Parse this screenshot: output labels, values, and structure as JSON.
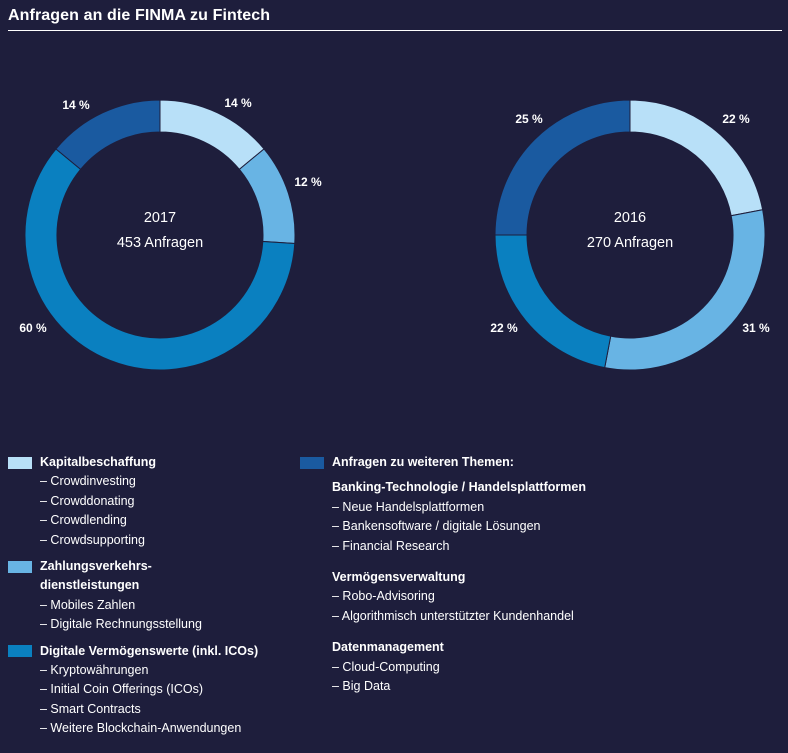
{
  "header": {
    "title": "Anfragen an die FINMA zu Fintech"
  },
  "colors": {
    "background": "#1e1e3c",
    "kapital": "#b8e0f8",
    "zahlung": "#68b4e4",
    "digital": "#0a80c0",
    "weitere": "#1a5aa0"
  },
  "chart_data": [
    {
      "type": "pie",
      "title": "",
      "center": {
        "year": "2017",
        "count": "453 Anfragen"
      },
      "slices": [
        {
          "category": "Kapitalbeschaffung",
          "value": 14,
          "label": "14 %"
        },
        {
          "category": "Zahlungsverkehrsdienstleistungen",
          "value": 12,
          "label": "12 %"
        },
        {
          "category": "Digitale Vermögenswerte (inkl. ICOs)",
          "value": 60,
          "label": "60 %"
        },
        {
          "category": "Anfragen zu weiteren Themen",
          "value": 14,
          "label": "14 %"
        }
      ]
    },
    {
      "type": "pie",
      "title": "",
      "center": {
        "year": "2016",
        "count": "270 Anfragen"
      },
      "slices": [
        {
          "category": "Kapitalbeschaffung",
          "value": 22,
          "label": "22 %"
        },
        {
          "category": "Zahlungsverkehrsdienstleistungen",
          "value": 31,
          "label": "31 %"
        },
        {
          "category": "Digitale Vermögenswerte (inkl. ICOs)",
          "value": 22,
          "label": "22 %"
        },
        {
          "category": "Anfragen zu weiteren Themen",
          "value": 25,
          "label": "25 %"
        }
      ]
    }
  ],
  "legend_left": [
    {
      "key": "kapital",
      "head": [
        "Kapitalbeschaffung"
      ],
      "items": [
        "– Crowdinvesting",
        "– Crowddonating",
        "– Crowdlending",
        "– Crowdsupporting"
      ]
    },
    {
      "key": "zahlung",
      "head": [
        "Zahlungsverkehrs-",
        "dienstleistungen"
      ],
      "items": [
        "– Mobiles Zahlen",
        "– Digitale Rechnungsstellung"
      ]
    },
    {
      "key": "digital",
      "head": [
        "Digitale Vermögenswerte (inkl. ICOs)"
      ],
      "items": [
        "– Kryptowährungen",
        "– Initial Coin Offerings (ICOs)",
        "– Smart Contracts",
        "– Weitere Blockchain-Anwendungen"
      ]
    }
  ],
  "legend_right": {
    "key": "weitere",
    "head": "Anfragen zu weiteren Themen:",
    "groups": [
      {
        "title": "Banking-Technologie / Handelsplattformen",
        "items": [
          "– Neue Handelsplattformen",
          "– Bankensoftware / digitale Lösungen",
          "– Financial Research"
        ]
      },
      {
        "title": "Vermögensverwaltung",
        "items": [
          "– Robo-Advisoring",
          "– Algorithmisch unterstützter Kundenhandel"
        ]
      },
      {
        "title": "Datenmanagement",
        "items": [
          "– Cloud-Computing",
          "– Big Data"
        ]
      }
    ]
  }
}
